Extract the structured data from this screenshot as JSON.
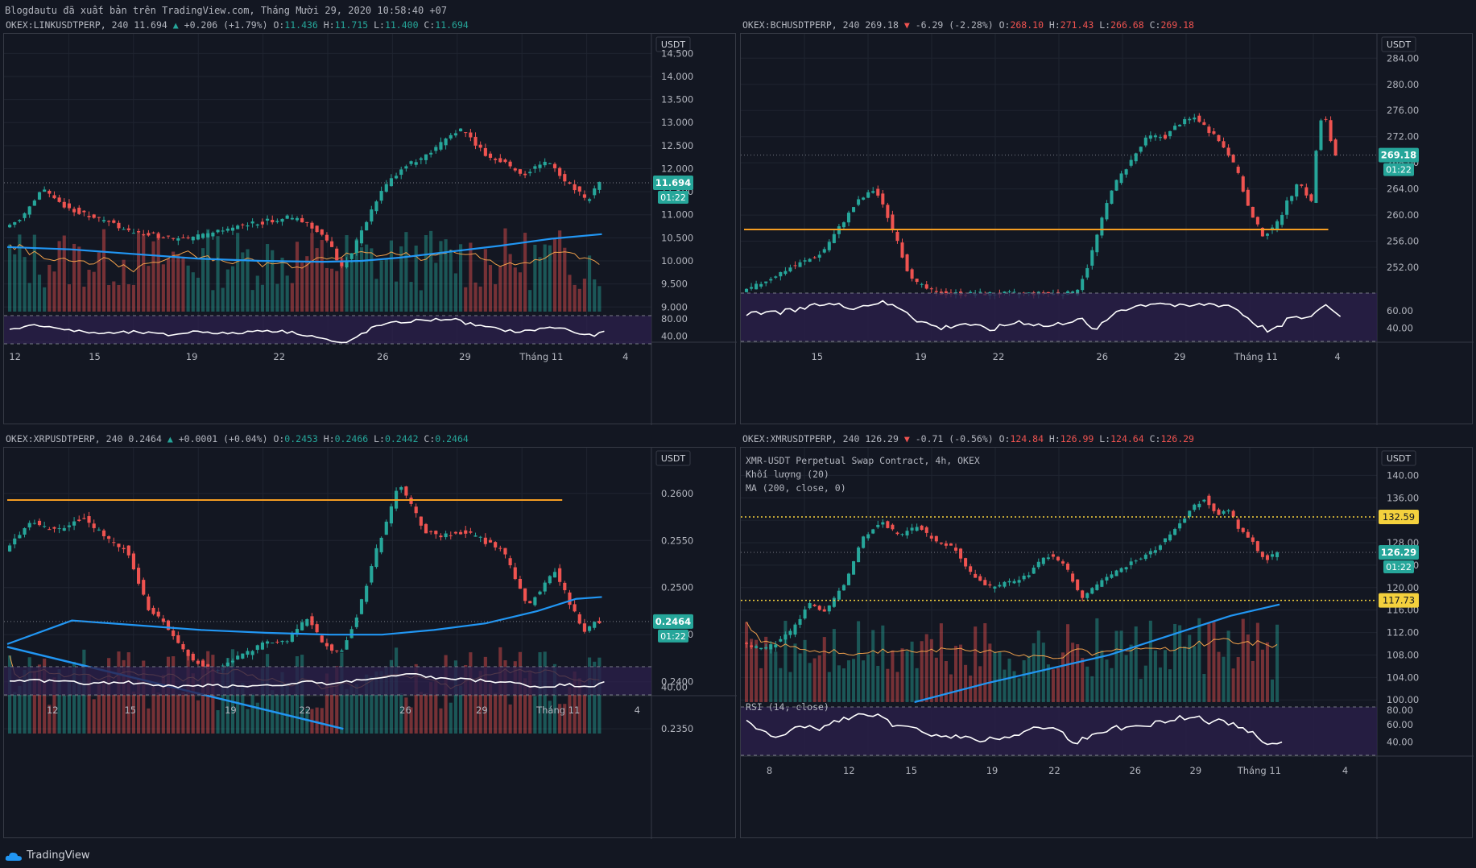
{
  "header_line": "Blogdautu đã xuất bản trên TradingView.com, Tháng Mười 29, 2020 10:58:40 +07",
  "footer_brand": "TradingView",
  "colors": {
    "up": "#26a69a",
    "down": "#ef5350",
    "ma": "#2196f3",
    "vol_ma": "#f0a04b",
    "hline": "#f59d22",
    "rsi": "#ffffff",
    "rsi_bg": "#2a1f4a",
    "bg": "#131722",
    "grid": "#1f2430",
    "text": "#b2b5be"
  },
  "chart_data": [
    {
      "id": "link",
      "type": "candlestick",
      "symbol": "OKEX:LINKUSDTPERP",
      "interval": "240",
      "last": "11.694",
      "change": "+0.206",
      "change_pct": "(+1.79%)",
      "direction": "up",
      "ohlc": {
        "o": "11.436",
        "h": "11.715",
        "l": "11.400",
        "c": "11.694"
      },
      "currency": "USDT",
      "countdown": "01:22",
      "price_ticks": [
        "14.500",
        "14.000",
        "13.500",
        "13.000",
        "12.500",
        "12.000",
        "11.500",
        "11.000",
        "10.500",
        "10.000",
        "9.500",
        "9.000"
      ],
      "price_range": [
        8.9,
        14.75
      ],
      "last_value": 11.694,
      "rsi_ticks": [
        "80.00",
        "40.00"
      ],
      "x_labels": [
        "12",
        "15",
        "19",
        "22",
        "26",
        "29",
        "Tháng 11",
        "4"
      ],
      "legend": [],
      "price_path": [
        [
          0,
          10.7
        ],
        [
          3,
          11.0
        ],
        [
          6,
          11.6
        ],
        [
          8,
          11.3
        ],
        [
          11,
          11.1
        ],
        [
          14,
          10.95
        ],
        [
          17,
          10.8
        ],
        [
          20,
          10.6
        ],
        [
          24,
          10.55
        ],
        [
          28,
          10.45
        ],
        [
          33,
          10.6
        ],
        [
          37,
          10.75
        ],
        [
          41,
          10.85
        ],
        [
          45,
          10.95
        ],
        [
          48,
          10.8
        ],
        [
          50,
          10.6
        ],
        [
          52,
          10.2
        ],
        [
          53,
          9.85
        ],
        [
          54,
          10.0
        ],
        [
          56,
          10.5
        ],
        [
          58,
          11.1
        ],
        [
          60,
          11.6
        ],
        [
          63,
          12.05
        ],
        [
          66,
          12.2
        ],
        [
          68,
          12.4
        ],
        [
          70,
          12.7
        ],
        [
          72,
          12.85
        ],
        [
          74,
          12.6
        ],
        [
          76,
          12.3
        ],
        [
          78,
          12.2
        ],
        [
          80,
          12.05
        ],
        [
          82,
          11.85
        ],
        [
          84,
          12.05
        ],
        [
          86,
          12.15
        ],
        [
          88,
          11.8
        ],
        [
          90,
          11.6
        ],
        [
          92,
          11.3
        ],
        [
          93,
          11.5
        ],
        [
          94,
          11.69
        ]
      ],
      "ma_path": [
        [
          0,
          10.3
        ],
        [
          10,
          10.25
        ],
        [
          20,
          10.15
        ],
        [
          30,
          10.05
        ],
        [
          40,
          10.0
        ],
        [
          50,
          9.98
        ],
        [
          56,
          10.0
        ],
        [
          62,
          10.07
        ],
        [
          70,
          10.2
        ],
        [
          78,
          10.33
        ],
        [
          86,
          10.48
        ],
        [
          94,
          10.58
        ]
      ],
      "hlines": [],
      "vol_height": 0.55,
      "rsi_path": [
        [
          0,
          55
        ],
        [
          5,
          62
        ],
        [
          10,
          50
        ],
        [
          15,
          45
        ],
        [
          20,
          48
        ],
        [
          25,
          42
        ],
        [
          30,
          50
        ],
        [
          35,
          44
        ],
        [
          40,
          52
        ],
        [
          45,
          47
        ],
        [
          48,
          40
        ],
        [
          51,
          30
        ],
        [
          53,
          24
        ],
        [
          55,
          40
        ],
        [
          58,
          60
        ],
        [
          61,
          66
        ],
        [
          64,
          70
        ],
        [
          67,
          72
        ],
        [
          70,
          74
        ],
        [
          72,
          66
        ],
        [
          75,
          58
        ],
        [
          78,
          52
        ],
        [
          81,
          48
        ],
        [
          84,
          55
        ],
        [
          87,
          57
        ],
        [
          90,
          45
        ],
        [
          92,
          40
        ],
        [
          94,
          48
        ]
      ]
    },
    {
      "id": "bch",
      "type": "candlestick",
      "symbol": "OKEX:BCHUSDTPERP",
      "interval": "240",
      "last": "269.18",
      "change": "-6.29",
      "change_pct": "(-2.28%)",
      "direction": "down",
      "ohlc": {
        "o": "268.10",
        "h": "271.43",
        "l": "266.68",
        "c": "269.18"
      },
      "currency": "USDT",
      "countdown": "01:22",
      "price_ticks": [
        "284.00",
        "280.00",
        "276.00",
        "272.00",
        "268.00",
        "264.00",
        "260.00",
        "256.00",
        "252.00"
      ],
      "price_range": [
        248.8,
        286.5
      ],
      "last_value": 269.18,
      "rsi_ticks": [
        "60.00",
        "40.00"
      ],
      "x_labels": [
        "15",
        "19",
        "22",
        "26",
        "29",
        "Tháng 11",
        "4"
      ],
      "legend": [],
      "price_path": [
        [
          0,
          248
        ],
        [
          8,
          252
        ],
        [
          13,
          254
        ],
        [
          16,
          258
        ],
        [
          19,
          262
        ],
        [
          22,
          264
        ],
        [
          24,
          260
        ],
        [
          26,
          255
        ],
        [
          28,
          250
        ],
        [
          32,
          248
        ],
        [
          40,
          248
        ],
        [
          48,
          248
        ],
        [
          55,
          248
        ],
        [
          57,
          252
        ],
        [
          59,
          258
        ],
        [
          61,
          264
        ],
        [
          64,
          268
        ],
        [
          67,
          272
        ],
        [
          70,
          272
        ],
        [
          72,
          274
        ],
        [
          75,
          275
        ],
        [
          78,
          272
        ],
        [
          80,
          270
        ],
        [
          82,
          266
        ],
        [
          84,
          260
        ],
        [
          86,
          257
        ],
        [
          88,
          258
        ],
        [
          90,
          262
        ],
        [
          92,
          265
        ],
        [
          94,
          262
        ],
        [
          95,
          272
        ],
        [
          96,
          276
        ],
        [
          97,
          272
        ],
        [
          98,
          269.18
        ]
      ],
      "ma_path": [],
      "hlines": [
        {
          "value": 257.8,
          "x_start": 0,
          "x_end": 120
        }
      ],
      "vol_height": 0,
      "rsi_path": [
        [
          0,
          55
        ],
        [
          8,
          60
        ],
        [
          13,
          68
        ],
        [
          18,
          64
        ],
        [
          22,
          70
        ],
        [
          26,
          62
        ],
        [
          28,
          50
        ],
        [
          32,
          40
        ],
        [
          36,
          46
        ],
        [
          40,
          38
        ],
        [
          45,
          48
        ],
        [
          50,
          42
        ],
        [
          55,
          52
        ],
        [
          57,
          38
        ],
        [
          59,
          45
        ],
        [
          61,
          60
        ],
        [
          64,
          65
        ],
        [
          68,
          70
        ],
        [
          72,
          64
        ],
        [
          76,
          68
        ],
        [
          80,
          66
        ],
        [
          82,
          56
        ],
        [
          84,
          45
        ],
        [
          86,
          38
        ],
        [
          88,
          40
        ],
        [
          90,
          55
        ],
        [
          92,
          48
        ],
        [
          94,
          60
        ],
        [
          96,
          68
        ],
        [
          97,
          58
        ],
        [
          98,
          56
        ]
      ]
    },
    {
      "id": "xrp",
      "type": "candlestick",
      "symbol": "OKEX:XRPUSDTPERP",
      "interval": "240",
      "last": "0.2464",
      "change": "+0.0001",
      "change_pct": "(+0.04%)",
      "direction": "up",
      "ohlc": {
        "o": "0.2453",
        "h": "0.2466",
        "l": "0.2442",
        "c": "0.2464"
      },
      "currency": "USDT",
      "countdown": "01:22",
      "price_ticks": [
        "0.2600",
        "0.2550",
        "0.2500",
        "0.2450",
        "0.2400",
        "0.2350"
      ],
      "price_range": [
        0.2345,
        0.264
      ],
      "last_value": 0.2464,
      "rsi_ticks": [
        "40.00"
      ],
      "x_labels": [
        "12",
        "15",
        "19",
        "22",
        "26",
        "29",
        "Tháng 11",
        "4"
      ],
      "legend": [],
      "price_path": [
        [
          0,
          0.254
        ],
        [
          4,
          0.257
        ],
        [
          8,
          0.256
        ],
        [
          12,
          0.2575
        ],
        [
          16,
          0.255
        ],
        [
          19,
          0.254
        ],
        [
          22,
          0.248
        ],
        [
          25,
          0.246
        ],
        [
          28,
          0.243
        ],
        [
          32,
          0.241
        ],
        [
          36,
          0.2425
        ],
        [
          40,
          0.244
        ],
        [
          44,
          0.2445
        ],
        [
          47,
          0.247
        ],
        [
          49,
          0.244
        ],
        [
          52,
          0.243
        ],
        [
          55,
          0.248
        ],
        [
          57,
          0.253
        ],
        [
          59,
          0.257
        ],
        [
          61,
          0.261
        ],
        [
          63,
          0.2585
        ],
        [
          65,
          0.256
        ],
        [
          68,
          0.2555
        ],
        [
          71,
          0.256
        ],
        [
          74,
          0.255
        ],
        [
          77,
          0.254
        ],
        [
          79,
          0.251
        ],
        [
          81,
          0.248
        ],
        [
          83,
          0.25
        ],
        [
          85,
          0.252
        ],
        [
          87,
          0.249
        ],
        [
          89,
          0.246
        ],
        [
          90,
          0.245
        ],
        [
          91,
          0.2464
        ]
      ],
      "ma_path": [
        [
          0,
          0.244
        ],
        [
          10,
          0.2465
        ],
        [
          20,
          0.246
        ],
        [
          30,
          0.2455
        ],
        [
          40,
          0.2452
        ],
        [
          50,
          0.245
        ],
        [
          58,
          0.245
        ],
        [
          66,
          0.2455
        ],
        [
          74,
          0.2462
        ],
        [
          82,
          0.2475
        ],
        [
          88,
          0.2488
        ],
        [
          92,
          0.249
        ]
      ],
      "hlines": [
        {
          "value": 0.2593,
          "x_start": 0,
          "x_end": 112
        }
      ],
      "trendline": [
        [
          0,
          0.2437
        ],
        [
          52,
          0.235
        ]
      ],
      "vol_height": 0.55,
      "rsi_path": [
        [
          0,
          55
        ],
        [
          6,
          52
        ],
        [
          12,
          48
        ],
        [
          18,
          50
        ],
        [
          22,
          45
        ],
        [
          26,
          40
        ],
        [
          30,
          44
        ],
        [
          36,
          42
        ],
        [
          42,
          46
        ],
        [
          46,
          50
        ],
        [
          50,
          45
        ],
        [
          54,
          55
        ],
        [
          58,
          58
        ],
        [
          62,
          65
        ],
        [
          66,
          58
        ],
        [
          70,
          55
        ],
        [
          74,
          52
        ],
        [
          78,
          48
        ],
        [
          82,
          40
        ],
        [
          86,
          45
        ],
        [
          90,
          42
        ],
        [
          92,
          48
        ]
      ]
    },
    {
      "id": "xmr",
      "type": "candlestick",
      "symbol": "OKEX:XMRUSDTPERP",
      "interval": "240",
      "last": "126.29",
      "change": "-0.71",
      "change_pct": "(-0.56%)",
      "direction": "down",
      "ohlc": {
        "o": "124.84",
        "h": "126.99",
        "l": "124.64",
        "c": "126.29"
      },
      "currency": "USDT",
      "countdown": "01:22",
      "price_ticks": [
        "140.00",
        "136.00",
        "132.00",
        "128.00",
        "124.00",
        "120.00",
        "116.00",
        "112.00",
        "108.00",
        "104.00",
        "100.00"
      ],
      "price_range": [
        99.6,
        143.5
      ],
      "last_value": 126.29,
      "rsi_ticks": [
        "80.00",
        "60.00",
        "40.00"
      ],
      "x_labels": [
        "8",
        "12",
        "15",
        "19",
        "22",
        "26",
        "29",
        "Tháng 11",
        "4"
      ],
      "legend": [
        "XMR-USDT Perpetual Swap Contract, 4h, OKEX",
        "Khối lượng (20)",
        "MA (200, close, 0)",
        "RSI (14, close)"
      ],
      "price_path": [
        [
          0,
          110
        ],
        [
          4,
          109
        ],
        [
          8,
          112
        ],
        [
          11,
          117
        ],
        [
          14,
          116
        ],
        [
          17,
          121
        ],
        [
          20,
          129
        ],
        [
          23,
          132
        ],
        [
          26,
          129
        ],
        [
          29,
          131
        ],
        [
          32,
          128
        ],
        [
          35,
          127
        ],
        [
          38,
          122
        ],
        [
          41,
          120
        ],
        [
          44,
          121
        ],
        [
          47,
          122
        ],
        [
          50,
          126
        ],
        [
          53,
          124
        ],
        [
          56,
          118
        ],
        [
          59,
          121
        ],
        [
          62,
          123
        ],
        [
          65,
          125
        ],
        [
          68,
          127
        ],
        [
          71,
          130
        ],
        [
          74,
          134
        ],
        [
          76,
          136
        ],
        [
          78,
          133
        ],
        [
          80,
          134
        ],
        [
          82,
          130
        ],
        [
          84,
          128
        ],
        [
          86,
          125
        ],
        [
          88,
          126.29
        ]
      ],
      "ma_path": [
        [
          28,
          99.6
        ],
        [
          40,
          103
        ],
        [
          50,
          105.5
        ],
        [
          60,
          108
        ],
        [
          70,
          111.5
        ],
        [
          80,
          115
        ],
        [
          88,
          117
        ]
      ],
      "hlines": [
        {
          "value": 132.59,
          "label": "132.59",
          "dotted": true
        },
        {
          "value": 117.73,
          "label": "117.73",
          "dotted": true
        }
      ],
      "vol_height": 0.6,
      "rsi_path": [
        [
          0,
          62
        ],
        [
          3,
          50
        ],
        [
          6,
          45
        ],
        [
          9,
          60
        ],
        [
          12,
          55
        ],
        [
          15,
          65
        ],
        [
          18,
          70
        ],
        [
          21,
          72
        ],
        [
          24,
          60
        ],
        [
          27,
          55
        ],
        [
          30,
          50
        ],
        [
          33,
          48
        ],
        [
          36,
          45
        ],
        [
          39,
          42
        ],
        [
          42,
          46
        ],
        [
          45,
          50
        ],
        [
          48,
          58
        ],
        [
          51,
          55
        ],
        [
          54,
          40
        ],
        [
          57,
          48
        ],
        [
          60,
          55
        ],
        [
          63,
          58
        ],
        [
          66,
          60
        ],
        [
          69,
          65
        ],
        [
          72,
          68
        ],
        [
          74,
          70
        ],
        [
          76,
          62
        ],
        [
          78,
          66
        ],
        [
          80,
          60
        ],
        [
          82,
          55
        ],
        [
          84,
          45
        ],
        [
          86,
          38
        ],
        [
          88,
          42
        ]
      ]
    }
  ]
}
